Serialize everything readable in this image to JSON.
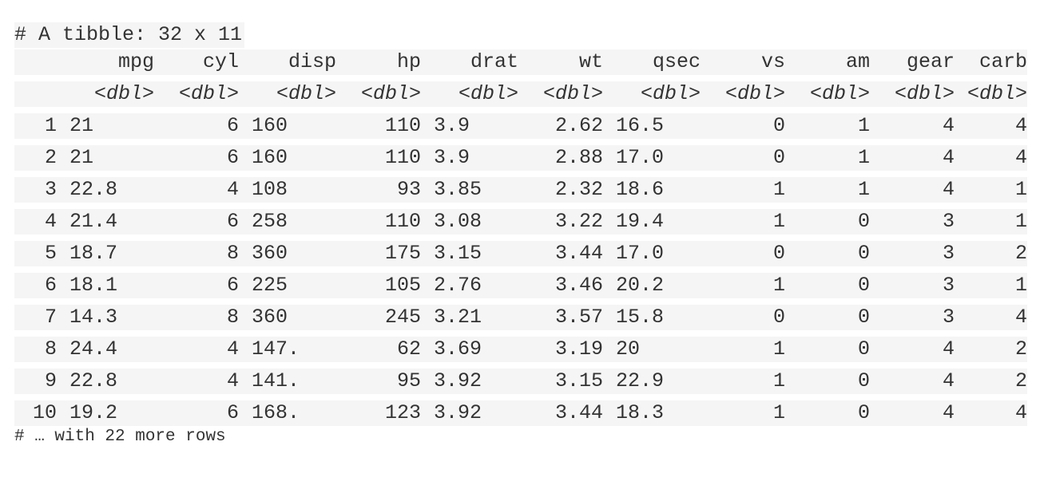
{
  "title": "# A tibble: 32 x 11",
  "columns": [
    "mpg",
    "cyl",
    "disp",
    "hp",
    "drat",
    "wt",
    "qsec",
    "vs",
    "am",
    "gear",
    "carb"
  ],
  "column_types": [
    "<dbl>",
    "<dbl>",
    "<dbl>",
    "<dbl>",
    "<dbl>",
    "<dbl>",
    "<dbl>",
    "<dbl>",
    "<dbl>",
    "<dbl>",
    "<dbl>"
  ],
  "rows": [
    {
      "id": "1",
      "cells": [
        "21",
        "6",
        "160",
        "110",
        "3.9",
        "2.62",
        "16.5",
        "0",
        "1",
        "4",
        "4"
      ]
    },
    {
      "id": "2",
      "cells": [
        "21",
        "6",
        "160",
        "110",
        "3.9",
        "2.88",
        "17.0",
        "0",
        "1",
        "4",
        "4"
      ]
    },
    {
      "id": "3",
      "cells": [
        "22.8",
        "4",
        "108",
        "93",
        "3.85",
        "2.32",
        "18.6",
        "1",
        "1",
        "4",
        "1"
      ]
    },
    {
      "id": "4",
      "cells": [
        "21.4",
        "6",
        "258",
        "110",
        "3.08",
        "3.22",
        "19.4",
        "1",
        "0",
        "3",
        "1"
      ]
    },
    {
      "id": "5",
      "cells": [
        "18.7",
        "8",
        "360",
        "175",
        "3.15",
        "3.44",
        "17.0",
        "0",
        "0",
        "3",
        "2"
      ]
    },
    {
      "id": "6",
      "cells": [
        "18.1",
        "6",
        "225",
        "105",
        "2.76",
        "3.46",
        "20.2",
        "1",
        "0",
        "3",
        "1"
      ]
    },
    {
      "id": "7",
      "cells": [
        "14.3",
        "8",
        "360",
        "245",
        "3.21",
        "3.57",
        "15.8",
        "0",
        "0",
        "3",
        "4"
      ]
    },
    {
      "id": "8",
      "cells": [
        "24.4",
        "4",
        "147.",
        "62",
        "3.69",
        "3.19",
        "20",
        "1",
        "0",
        "4",
        "2"
      ]
    },
    {
      "id": "9",
      "cells": [
        "22.8",
        "4",
        "141.",
        "95",
        "3.92",
        "3.15",
        "22.9",
        "1",
        "0",
        "4",
        "2"
      ]
    },
    {
      "id": "10",
      "cells": [
        "19.2",
        "6",
        "168.",
        "123",
        "3.92",
        "3.44",
        "18.3",
        "1",
        "0",
        "4",
        "4"
      ]
    }
  ],
  "footer": "# … with 22 more rows"
}
